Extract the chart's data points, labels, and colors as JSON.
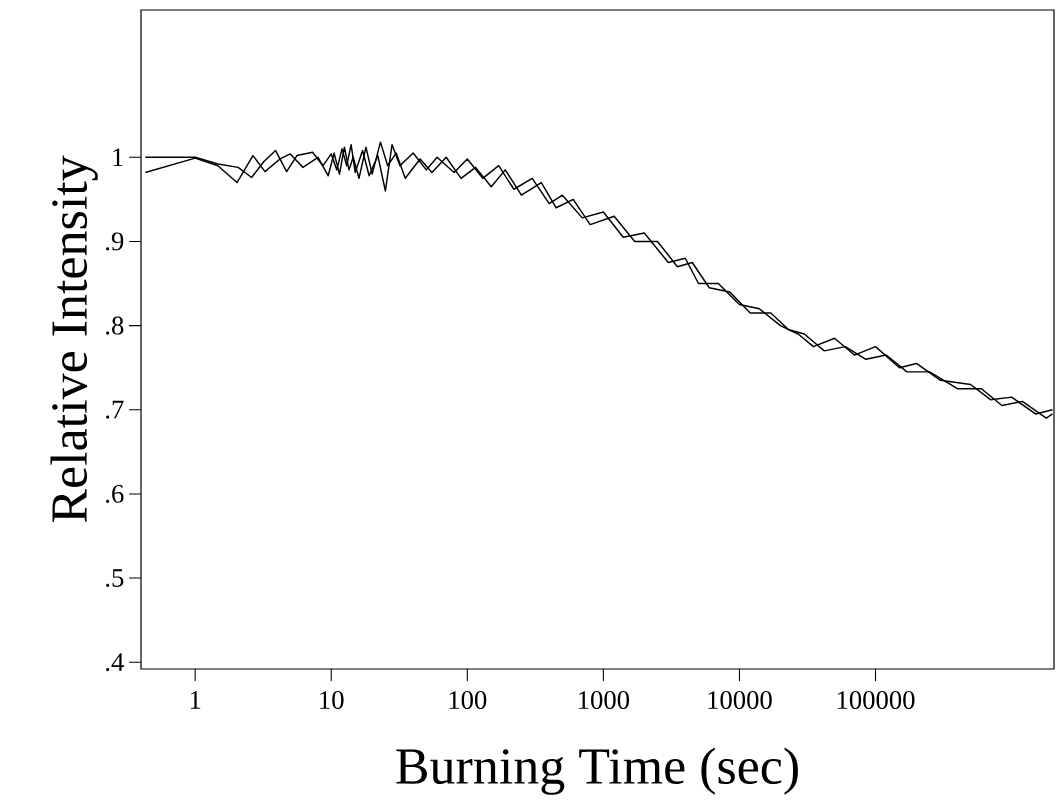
{
  "chart_data": {
    "type": "line",
    "xlabel": "Burning Time (sec)",
    "ylabel": "Relative Intensity",
    "log": "x",
    "xlim": [
      0.4,
      2050000
    ],
    "ylim": [
      0.392,
      1.175
    ],
    "xticks": [
      1,
      10,
      100,
      1000,
      10000,
      100000
    ],
    "yticks": [
      {
        "value": 0.4,
        "label": ".4"
      },
      {
        "value": 0.5,
        "label": ".5"
      },
      {
        "value": 0.6,
        "label": ".6"
      },
      {
        "value": 0.7,
        "label": ".7"
      },
      {
        "value": 0.8,
        "label": ".8"
      },
      {
        "value": 0.9,
        "label": ".9"
      },
      1
    ],
    "series": [
      {
        "color": "#000000",
        "x": [
          0.43,
          1,
          1.47,
          2.07,
          2.6,
          3.2,
          3.9,
          4.7,
          5.6,
          7.3,
          8.7,
          10,
          11,
          12,
          13,
          14,
          15,
          17,
          19,
          22,
          25,
          28,
          32,
          40,
          50,
          60,
          80,
          100,
          130,
          170,
          220,
          300,
          400,
          500,
          700,
          1000,
          1400,
          2000,
          3000,
          4000,
          5000,
          7000,
          10000,
          14000,
          20000,
          27000,
          35000,
          50000,
          70000,
          100000,
          150000,
          200000,
          300000,
          500000,
          700000,
          1000000,
          1500000,
          2000000
        ],
        "values": [
          1.0,
          1.0,
          0.992,
          0.988,
          0.976,
          0.995,
          1.008,
          0.983,
          1.002,
          1.006,
          0.99,
          1.004,
          0.985,
          1.01,
          0.99,
          1.015,
          0.982,
          1.008,
          0.978,
          1.002,
          0.96,
          1.015,
          0.99,
          1.005,
          0.985,
          1.0,
          0.982,
          0.998,
          0.975,
          0.99,
          0.962,
          0.975,
          0.945,
          0.955,
          0.928,
          0.935,
          0.905,
          0.91,
          0.875,
          0.88,
          0.85,
          0.85,
          0.825,
          0.82,
          0.8,
          0.79,
          0.775,
          0.785,
          0.765,
          0.775,
          0.75,
          0.755,
          0.735,
          0.73,
          0.712,
          0.715,
          0.695,
          0.7
        ]
      },
      {
        "color": "#000000",
        "x": [
          0.43,
          1,
          1.47,
          2.03,
          2.66,
          3.26,
          4.2,
          5,
          6.2,
          8,
          9.5,
          10.5,
          11.5,
          12.5,
          13.5,
          14.5,
          16,
          18,
          20,
          23,
          26,
          30,
          35,
          45,
          55,
          70,
          90,
          115,
          150,
          190,
          250,
          350,
          450,
          600,
          800,
          1200,
          1700,
          2500,
          3500,
          4500,
          6000,
          8500,
          12000,
          17000,
          23000,
          30000,
          42000,
          60000,
          85000,
          120000,
          170000,
          250000,
          400000,
          600000,
          850000,
          1200000,
          1800000,
          2000000
        ],
        "values": [
          0.982,
          0.999,
          0.99,
          0.97,
          1.002,
          0.983,
          0.998,
          1.004,
          0.988,
          1.0,
          0.978,
          1.005,
          0.98,
          1.012,
          0.985,
          1.0,
          0.975,
          1.012,
          0.98,
          1.018,
          0.99,
          1.005,
          0.975,
          0.998,
          0.982,
          1.0,
          0.975,
          0.988,
          0.965,
          0.985,
          0.955,
          0.97,
          0.94,
          0.95,
          0.92,
          0.93,
          0.9,
          0.9,
          0.87,
          0.875,
          0.845,
          0.84,
          0.815,
          0.815,
          0.795,
          0.79,
          0.77,
          0.775,
          0.76,
          0.765,
          0.745,
          0.745,
          0.725,
          0.725,
          0.705,
          0.71,
          0.69,
          0.695
        ]
      }
    ]
  }
}
